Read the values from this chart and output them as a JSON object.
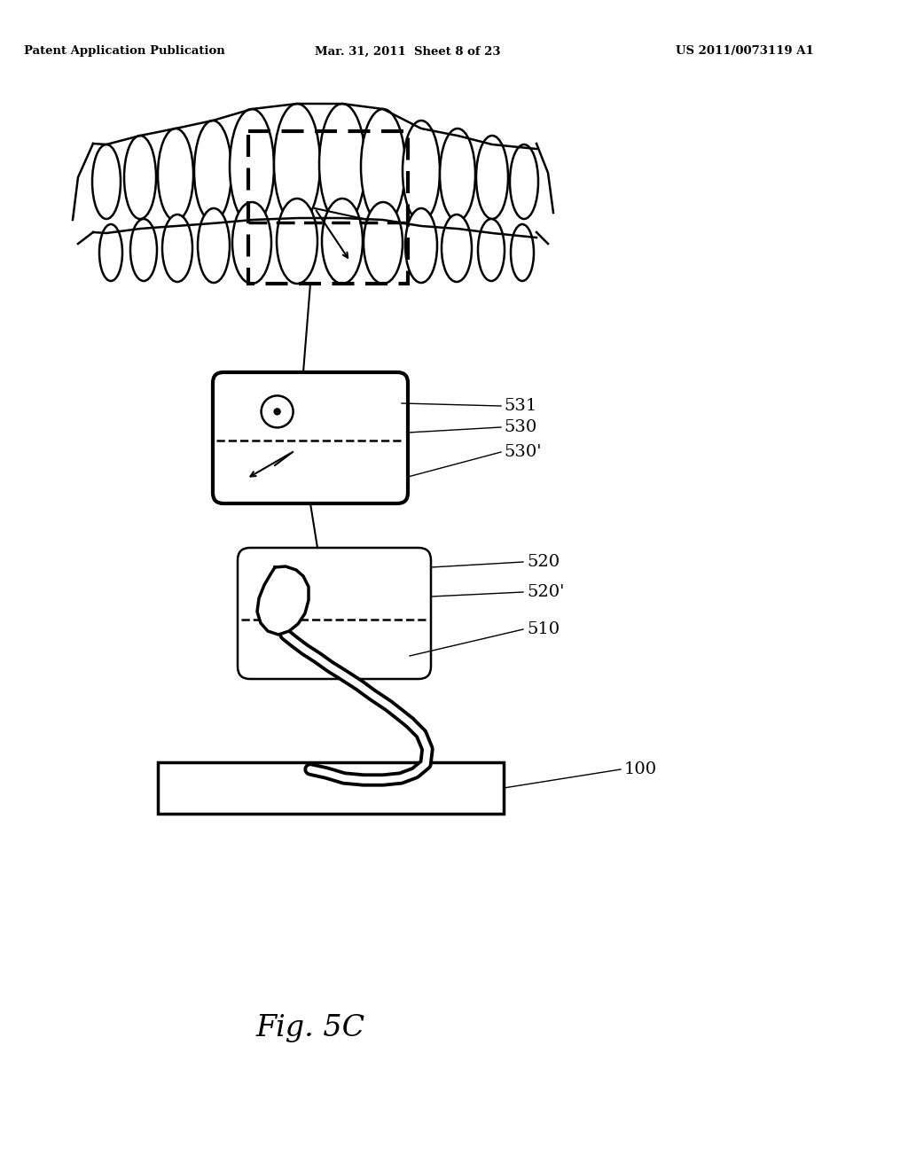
{
  "bg_color": "#ffffff",
  "header_left": "Patent Application Publication",
  "header_mid": "Mar. 31, 2011  Sheet 8 of 23",
  "header_right": "US 2011/0073119 A1",
  "fig_label": "Fig. 5C",
  "label_fs": 14,
  "header_fs": 9.5
}
